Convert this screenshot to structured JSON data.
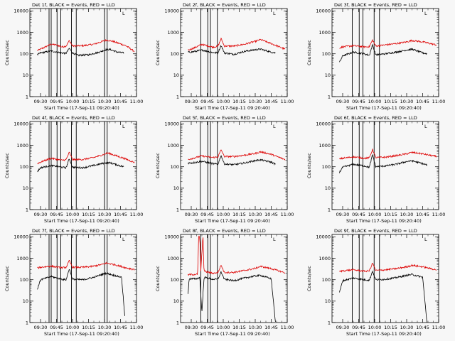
{
  "chart_data": {
    "type": "line",
    "layout": "3x3 grid",
    "xlabel": "Start Time (17-Sep-11 09:20:40)",
    "ylabel": "Counts/sec",
    "x_tick_labels": [
      "09:30",
      "09:45",
      "10:00",
      "10:15",
      "10:30",
      "10:45",
      "11:00"
    ],
    "x_range_minutes_after_0930": [
      -10,
      90
    ],
    "y_tick_labels": [
      "1",
      "10",
      "100",
      "1000",
      "10000"
    ],
    "y_scale": "log",
    "y_range": [
      1,
      13000
    ],
    "series_colors": {
      "events": "#000000",
      "lld": "#dd0000"
    },
    "legend_glyph": "L",
    "panels": [
      {
        "title": "Det 1f, BLACK = Events, RED = LLD",
        "vlines": [
          8,
          10,
          15.5,
          19,
          29,
          33.5,
          60,
          62.5
        ],
        "events": [
          [
            -3,
            90
          ],
          [
            0,
            110
          ],
          [
            10,
            135
          ],
          [
            20,
            110
          ],
          [
            24,
            105
          ],
          [
            27,
            180
          ],
          [
            30,
            110
          ],
          [
            35,
            85
          ],
          [
            45,
            90
          ],
          [
            55,
            120
          ],
          [
            62,
            160
          ],
          [
            65,
            160
          ],
          [
            72,
            120
          ],
          [
            78,
            110
          ]
        ],
        "lld": [
          [
            -3,
            140
          ],
          [
            0,
            165
          ],
          [
            10,
            280
          ],
          [
            15,
            260
          ],
          [
            20,
            210
          ],
          [
            24,
            230
          ],
          [
            27,
            420
          ],
          [
            30,
            230
          ],
          [
            40,
            240
          ],
          [
            50,
            280
          ],
          [
            58,
            380
          ],
          [
            62,
            440
          ],
          [
            68,
            380
          ],
          [
            80,
            240
          ],
          [
            88,
            130
          ]
        ]
      },
      {
        "title": "Det 2f, BLACK = Events, RED = LLD",
        "vlines": [
          9,
          15.5,
          18,
          24.5
        ],
        "events": [
          [
            -3,
            120
          ],
          [
            0,
            120
          ],
          [
            10,
            150
          ],
          [
            20,
            115
          ],
          [
            25,
            110
          ],
          [
            28,
            250
          ],
          [
            31,
            110
          ],
          [
            40,
            95
          ],
          [
            50,
            130
          ],
          [
            60,
            155
          ],
          [
            65,
            165
          ],
          [
            75,
            120
          ],
          [
            79,
            110
          ]
        ],
        "lld": [
          [
            -3,
            150
          ],
          [
            0,
            165
          ],
          [
            10,
            275
          ],
          [
            20,
            205
          ],
          [
            25,
            225
          ],
          [
            28,
            510
          ],
          [
            31,
            230
          ],
          [
            40,
            230
          ],
          [
            50,
            280
          ],
          [
            60,
            380
          ],
          [
            65,
            460
          ],
          [
            75,
            300
          ],
          [
            88,
            165
          ]
        ]
      },
      {
        "title": "Det 3f, BLACK = Events, RED = LLD",
        "vlines": [
          9,
          15.5,
          19,
          29.5,
          34.5
        ],
        "events": [
          [
            -3,
            40
          ],
          [
            0,
            80
          ],
          [
            10,
            120
          ],
          [
            20,
            100
          ],
          [
            25,
            85
          ],
          [
            28,
            260
          ],
          [
            31,
            90
          ],
          [
            40,
            100
          ],
          [
            50,
            120
          ],
          [
            60,
            150
          ],
          [
            65,
            165
          ],
          [
            75,
            110
          ],
          [
            79,
            100
          ]
        ],
        "lld": [
          [
            -3,
            190
          ],
          [
            0,
            210
          ],
          [
            10,
            240
          ],
          [
            20,
            210
          ],
          [
            25,
            215
          ],
          [
            28,
            440
          ],
          [
            31,
            230
          ],
          [
            40,
            260
          ],
          [
            50,
            300
          ],
          [
            60,
            360
          ],
          [
            65,
            420
          ],
          [
            75,
            360
          ],
          [
            88,
            260
          ]
        ]
      },
      {
        "title": "Det 4f, BLACK = Events, RED = LLD",
        "vlines": [
          8,
          10,
          15.5,
          19,
          29,
          33.5,
          60,
          62.5
        ],
        "events": [
          [
            -3,
            60
          ],
          [
            0,
            90
          ],
          [
            10,
            115
          ],
          [
            20,
            95
          ],
          [
            24,
            90
          ],
          [
            27,
            240
          ],
          [
            30,
            95
          ],
          [
            40,
            90
          ],
          [
            50,
            115
          ],
          [
            60,
            150
          ],
          [
            65,
            155
          ],
          [
            75,
            110
          ],
          [
            78,
            100
          ]
        ],
        "lld": [
          [
            -3,
            140
          ],
          [
            0,
            165
          ],
          [
            10,
            250
          ],
          [
            20,
            200
          ],
          [
            24,
            215
          ],
          [
            27,
            480
          ],
          [
            30,
            215
          ],
          [
            40,
            220
          ],
          [
            50,
            270
          ],
          [
            58,
            360
          ],
          [
            63,
            440
          ],
          [
            70,
            340
          ],
          [
            80,
            230
          ],
          [
            88,
            160
          ]
        ]
      },
      {
        "title": "Det 5f, BLACK = Events, RED = LLD",
        "vlines": [
          8.5,
          15.5,
          18,
          24.5
        ],
        "events": [
          [
            -3,
            150
          ],
          [
            0,
            150
          ],
          [
            10,
            180
          ],
          [
            20,
            140
          ],
          [
            25,
            130
          ],
          [
            28,
            340
          ],
          [
            31,
            135
          ],
          [
            40,
            125
          ],
          [
            50,
            150
          ],
          [
            60,
            195
          ],
          [
            65,
            210
          ],
          [
            75,
            165
          ],
          [
            79,
            130
          ]
        ],
        "lld": [
          [
            -3,
            220
          ],
          [
            0,
            240
          ],
          [
            10,
            320
          ],
          [
            20,
            270
          ],
          [
            25,
            285
          ],
          [
            28,
            620
          ],
          [
            31,
            300
          ],
          [
            40,
            300
          ],
          [
            50,
            350
          ],
          [
            60,
            420
          ],
          [
            65,
            500
          ],
          [
            75,
            380
          ],
          [
            88,
            215
          ]
        ]
      },
      {
        "title": "Det 6f, BLACK = Events, RED = LLD",
        "vlines": [
          9,
          15.5,
          19,
          29.5,
          34.5
        ],
        "events": [
          [
            -3,
            55
          ],
          [
            0,
            95
          ],
          [
            10,
            130
          ],
          [
            20,
            110
          ],
          [
            25,
            95
          ],
          [
            28,
            360
          ],
          [
            31,
            100
          ],
          [
            40,
            110
          ],
          [
            50,
            130
          ],
          [
            60,
            175
          ],
          [
            65,
            190
          ],
          [
            75,
            140
          ],
          [
            79,
            120
          ]
        ],
        "lld": [
          [
            -3,
            230
          ],
          [
            0,
            250
          ],
          [
            10,
            290
          ],
          [
            20,
            250
          ],
          [
            25,
            260
          ],
          [
            28,
            640
          ],
          [
            31,
            270
          ],
          [
            40,
            280
          ],
          [
            50,
            330
          ],
          [
            60,
            400
          ],
          [
            65,
            470
          ],
          [
            75,
            400
          ],
          [
            88,
            300
          ]
        ]
      },
      {
        "title": "Det 7f, BLACK = Events, RED = LLD",
        "vlines": [
          8,
          10,
          15.5,
          19,
          29,
          33.5,
          60,
          62.5
        ],
        "events": [
          [
            -3,
            35
          ],
          [
            0,
            100
          ],
          [
            10,
            140
          ],
          [
            20,
            105
          ],
          [
            24,
            100
          ],
          [
            27,
            330
          ],
          [
            30,
            105
          ],
          [
            40,
            100
          ],
          [
            50,
            130
          ],
          [
            58,
            180
          ],
          [
            62,
            200
          ],
          [
            68,
            165
          ],
          [
            76,
            130
          ],
          [
            79,
            2
          ]
        ],
        "lld": [
          [
            -3,
            350
          ],
          [
            0,
            380
          ],
          [
            10,
            430
          ],
          [
            20,
            360
          ],
          [
            24,
            380
          ],
          [
            27,
            780
          ],
          [
            30,
            380
          ],
          [
            40,
            380
          ],
          [
            50,
            430
          ],
          [
            58,
            520
          ],
          [
            62,
            600
          ],
          [
            70,
            500
          ],
          [
            80,
            360
          ],
          [
            88,
            300
          ]
        ]
      },
      {
        "title": "Det 8f, BLACK = Events, RED = LLD",
        "vlines": [
          9,
          15.5,
          18,
          24.5
        ],
        "events": [
          [
            -3,
            20
          ],
          [
            -2,
            110
          ],
          [
            5,
            110
          ],
          [
            8,
            130
          ],
          [
            10,
            3
          ],
          [
            12,
            130
          ],
          [
            20,
            105
          ],
          [
            25,
            105
          ],
          [
            28,
            230
          ],
          [
            31,
            105
          ],
          [
            40,
            90
          ],
          [
            50,
            120
          ],
          [
            60,
            150
          ],
          [
            65,
            160
          ],
          [
            75,
            110
          ],
          [
            79,
            1
          ]
        ],
        "lld": [
          [
            -3,
            170
          ],
          [
            0,
            175
          ],
          [
            6,
            180
          ],
          [
            7,
            12000
          ],
          [
            8,
            9000
          ],
          [
            9,
            260
          ],
          [
            11,
            12000
          ],
          [
            12,
            250
          ],
          [
            20,
            200
          ],
          [
            25,
            215
          ],
          [
            28,
            480
          ],
          [
            31,
            220
          ],
          [
            40,
            220
          ],
          [
            50,
            270
          ],
          [
            60,
            340
          ],
          [
            65,
            420
          ],
          [
            75,
            330
          ],
          [
            88,
            210
          ]
        ]
      },
      {
        "title": "Det 9f, BLACK = Events, RED = LLD",
        "vlines": [
          9,
          15.5,
          19,
          29.5,
          34.5
        ],
        "events": [
          [
            -3,
            25
          ],
          [
            0,
            90
          ],
          [
            10,
            120
          ],
          [
            20,
            100
          ],
          [
            25,
            95
          ],
          [
            28,
            250
          ],
          [
            31,
            100
          ],
          [
            40,
            105
          ],
          [
            50,
            125
          ],
          [
            60,
            160
          ],
          [
            65,
            175
          ],
          [
            75,
            130
          ],
          [
            79,
            1
          ]
        ],
        "lld": [
          [
            -3,
            240
          ],
          [
            0,
            260
          ],
          [
            10,
            290
          ],
          [
            20,
            250
          ],
          [
            25,
            260
          ],
          [
            28,
            600
          ],
          [
            31,
            270
          ],
          [
            40,
            290
          ],
          [
            50,
            330
          ],
          [
            60,
            400
          ],
          [
            65,
            470
          ],
          [
            75,
            400
          ],
          [
            88,
            290
          ]
        ]
      }
    ]
  }
}
